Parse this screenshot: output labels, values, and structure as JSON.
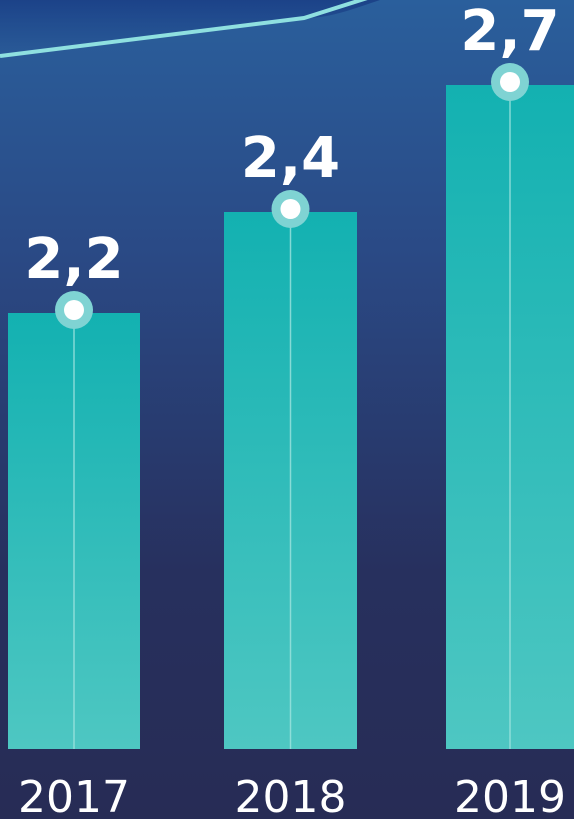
{
  "chart_data": {
    "type": "bar",
    "categories": [
      "2017",
      "2018",
      "2019"
    ],
    "values": [
      2.2,
      2.4,
      2.7
    ],
    "value_labels": [
      "2,2",
      "2,4",
      "2,7"
    ],
    "title": "",
    "xlabel": "",
    "ylabel": "",
    "colors": {
      "bar_top": "#13b1b1",
      "bar_bottom": "#4ec7c2",
      "marker_ring": "#7fd3d3",
      "trend_line": "#8fe0e0",
      "text": "#ffffff"
    }
  }
}
